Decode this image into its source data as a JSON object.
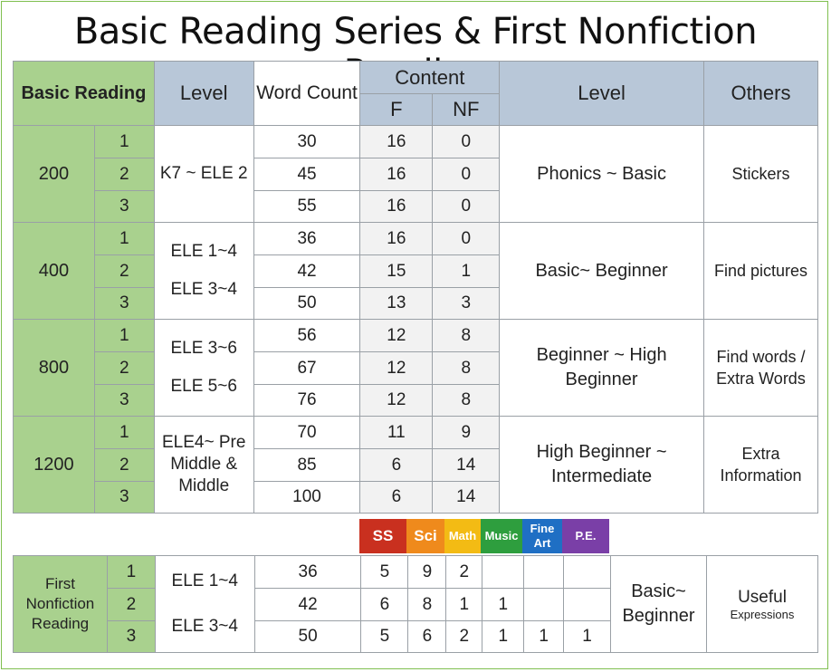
{
  "title": "Basic Reading Series & First Nonfiction Reading",
  "main": {
    "headers": {
      "basic_reading": "Basic Reading",
      "level": "Level",
      "word_count": "Word Count",
      "content": "Content",
      "f": "F",
      "nf": "NF",
      "level2": "Level",
      "others": "Others"
    },
    "groups": [
      {
        "name": "200",
        "level_a": "K7 ~ ELE 2",
        "level_b": "",
        "desc": "Phonics ~ Basic",
        "others": "Stickers",
        "rows": [
          {
            "n": "1",
            "wc": "30",
            "f": "16",
            "nf": "0"
          },
          {
            "n": "2",
            "wc": "45",
            "f": "16",
            "nf": "0"
          },
          {
            "n": "3",
            "wc": "55",
            "f": "16",
            "nf": "0"
          }
        ]
      },
      {
        "name": "400",
        "level_a": "ELE 1~4",
        "level_b": "ELE 3~4",
        "desc": "Basic~ Beginner",
        "others": "Find pictures",
        "rows": [
          {
            "n": "1",
            "wc": "36",
            "f": "16",
            "nf": "0"
          },
          {
            "n": "2",
            "wc": "42",
            "f": "15",
            "nf": "1"
          },
          {
            "n": "3",
            "wc": "50",
            "f": "13",
            "nf": "3"
          }
        ]
      },
      {
        "name": "800",
        "level_a": "ELE 3~6",
        "level_b": "ELE 5~6",
        "desc": "Beginner ~ High Beginner",
        "others": "Find words / Extra Words",
        "rows": [
          {
            "n": "1",
            "wc": "56",
            "f": "12",
            "nf": "8"
          },
          {
            "n": "2",
            "wc": "67",
            "f": "12",
            "nf": "8"
          },
          {
            "n": "3",
            "wc": "76",
            "f": "12",
            "nf": "8"
          }
        ]
      },
      {
        "name": "1200",
        "level_a": "ELE4~ Pre Middle & Middle",
        "level_b": "",
        "desc": "High Beginner ~ Intermediate",
        "others": "Extra Information",
        "rows": [
          {
            "n": "1",
            "wc": "70",
            "f": "11",
            "nf": "9"
          },
          {
            "n": "2",
            "wc": "85",
            "f": "6",
            "nf": "14"
          },
          {
            "n": "3",
            "wc": "100",
            "f": "6",
            "nf": "14"
          }
        ]
      }
    ]
  },
  "subjects": [
    {
      "label": "SS",
      "color": "#c9301f"
    },
    {
      "label": "Sci",
      "color": "#ef8a1c"
    },
    {
      "label": "Math",
      "color": "#f3bb14"
    },
    {
      "label": "Music",
      "color": "#2e9e3e"
    },
    {
      "label": "Fine Art",
      "color": "#1f6fc4"
    },
    {
      "label": "P.E.",
      "color": "#7a3fa7"
    }
  ],
  "fnr": {
    "label": "First Nonfiction Reading",
    "level_a": "ELE 1~4",
    "level_b": "ELE 3~4",
    "desc": "Basic~ Beginner",
    "others_main": "Useful",
    "others_sub": "Expressions",
    "rows": [
      {
        "n": "1",
        "wc": "36",
        "ss": "5",
        "sci": "9",
        "math": "2",
        "music": "",
        "art": "",
        "pe": ""
      },
      {
        "n": "2",
        "wc": "42",
        "ss": "6",
        "sci": "8",
        "math": "1",
        "music": "1",
        "art": "",
        "pe": ""
      },
      {
        "n": "3",
        "wc": "50",
        "ss": "5",
        "sci": "6",
        "math": "2",
        "music": "1",
        "art": "1",
        "pe": "1"
      }
    ]
  }
}
